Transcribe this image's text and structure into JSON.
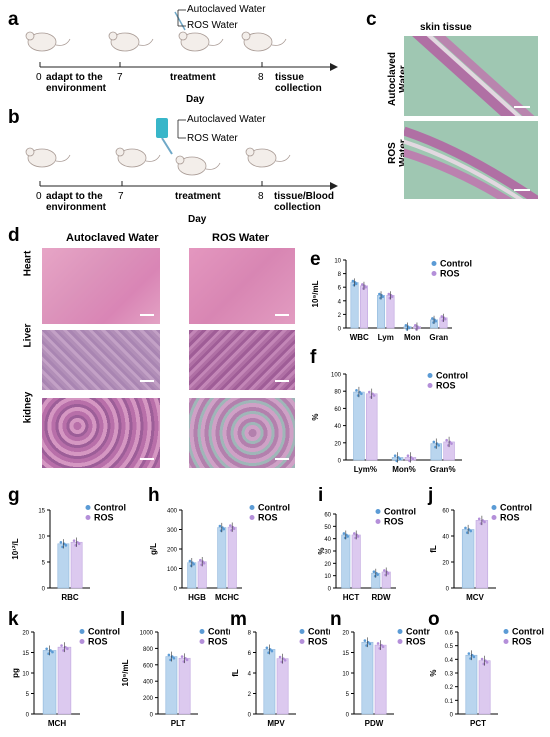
{
  "panel_letters": {
    "a": "a",
    "b": "b",
    "c": "c",
    "d": "d",
    "e": "e",
    "f": "f",
    "g": "g",
    "h": "h",
    "i": "i",
    "j": "j",
    "k": "k",
    "l": "l",
    "m": "m",
    "n": "n",
    "o": "o"
  },
  "timeline_a": {
    "tick0": "0",
    "tick0_label": "adapt to the\nenvironment",
    "tick7": "7",
    "tick_treat": "treatment",
    "tick8": "8",
    "tick8_label": "tissue\ncollection",
    "day": "Day",
    "water1": "Autoclaved Water",
    "water2": "ROS Water"
  },
  "timeline_b": {
    "tick0": "0",
    "tick0_label": "adapt to the\nenvironment",
    "tick7": "7",
    "tick_treat": "treatment",
    "tick8": "8",
    "tick8_label": "tissue/Blood\ncollection",
    "day": "Day",
    "water1": "Autoclaved Water",
    "water2": "ROS Water"
  },
  "panel_c": {
    "title": "skin tissue",
    "row1": "Autoclaved\nWater",
    "row2": "ROS\nWater"
  },
  "panel_d": {
    "col1": "Autoclaved Water",
    "col2": "ROS Water",
    "row1": "Heart",
    "row2": "Liver",
    "row3": "kidney"
  },
  "colors": {
    "control": "#5b9bd5",
    "ros": "#b48fd9",
    "control_bar": "#b9d5ee",
    "ros_bar": "#dcc9ef",
    "he_pink": "#d98fb6",
    "he_purple": "#a9579a"
  },
  "chart_data": [
    {
      "id": "e",
      "type": "bar",
      "ylabel": "10⁹/mL",
      "ylim": [
        0,
        10
      ],
      "yticks": [
        0,
        2,
        4,
        6,
        8,
        10
      ],
      "categories": [
        "WBC",
        "Lym",
        "Mon",
        "Gran"
      ],
      "series": [
        {
          "name": "Control",
          "values": [
            6.7,
            4.8,
            0.2,
            1.2
          ]
        },
        {
          "name": "ROS",
          "values": [
            6.2,
            4.8,
            0.2,
            1.5
          ]
        }
      ],
      "legend": "top-right"
    },
    {
      "id": "f",
      "type": "bar",
      "ylabel": "%",
      "ylim": [
        0,
        100
      ],
      "yticks": [
        0,
        20,
        40,
        60,
        80,
        100
      ],
      "categories": [
        "Lym%",
        "Mon%",
        "Gran%"
      ],
      "series": [
        {
          "name": "Control",
          "values": [
            79,
            3,
            19
          ]
        },
        {
          "name": "ROS",
          "values": [
            77,
            3,
            21
          ]
        }
      ],
      "legend": "top-right"
    },
    {
      "id": "g",
      "type": "bar",
      "ylabel": "10¹²/L",
      "ylim": [
        0,
        15
      ],
      "yticks": [
        0,
        5,
        10,
        15
      ],
      "categories": [
        "RBC"
      ],
      "series": [
        {
          "name": "Control",
          "values": [
            8.5
          ]
        },
        {
          "name": "ROS",
          "values": [
            8.8
          ]
        }
      ],
      "legend": "top-right"
    },
    {
      "id": "h",
      "type": "bar",
      "ylabel": "g/L",
      "ylim": [
        0,
        400
      ],
      "yticks": [
        0,
        100,
        200,
        300,
        400
      ],
      "categories": [
        "HGB",
        "MCHC"
      ],
      "series": [
        {
          "name": "Control",
          "values": [
            130,
            310
          ]
        },
        {
          "name": "ROS",
          "values": [
            135,
            312
          ]
        }
      ],
      "legend": "top-right"
    },
    {
      "id": "i",
      "type": "bar",
      "ylabel": "%",
      "ylim": [
        0,
        60
      ],
      "yticks": [
        0,
        10,
        20,
        30,
        40,
        50,
        60
      ],
      "categories": [
        "HCT",
        "RDW"
      ],
      "series": [
        {
          "name": "Control",
          "values": [
            43,
            12
          ]
        },
        {
          "name": "ROS",
          "values": [
            43,
            13
          ]
        }
      ],
      "legend": "top-right"
    },
    {
      "id": "j",
      "type": "bar",
      "ylabel": "fL",
      "ylim": [
        0,
        60
      ],
      "yticks": [
        0,
        20,
        40,
        60
      ],
      "categories": [
        "MCV"
      ],
      "series": [
        {
          "name": "Control",
          "values": [
            45
          ]
        },
        {
          "name": "ROS",
          "values": [
            52
          ]
        }
      ],
      "legend": "top-right"
    },
    {
      "id": "k",
      "type": "bar",
      "ylabel": "pg",
      "ylim": [
        0,
        20
      ],
      "yticks": [
        0,
        5,
        10,
        15,
        20
      ],
      "categories": [
        "MCH"
      ],
      "series": [
        {
          "name": "Control",
          "values": [
            15.5
          ]
        },
        {
          "name": "ROS",
          "values": [
            16.3
          ]
        }
      ],
      "legend": "top-right"
    },
    {
      "id": "l",
      "type": "bar",
      "ylabel": "10⁹/mL",
      "ylim": [
        0,
        1000
      ],
      "yticks": [
        0,
        200,
        400,
        600,
        800,
        1000
      ],
      "categories": [
        "PLT"
      ],
      "series": [
        {
          "name": "Control",
          "values": [
            700
          ]
        },
        {
          "name": "ROS",
          "values": [
            680
          ]
        }
      ],
      "legend": "top-right"
    },
    {
      "id": "m",
      "type": "bar",
      "ylabel": "fL",
      "ylim": [
        0,
        8
      ],
      "yticks": [
        0,
        2,
        4,
        6,
        8
      ],
      "categories": [
        "MPV"
      ],
      "series": [
        {
          "name": "Control",
          "values": [
            6.3
          ]
        },
        {
          "name": "ROS",
          "values": [
            5.4
          ]
        }
      ],
      "legend": "top-right"
    },
    {
      "id": "n",
      "type": "bar",
      "ylabel": "",
      "ylim": [
        0,
        20
      ],
      "yticks": [
        0,
        5,
        10,
        15,
        20
      ],
      "categories": [
        "PDW"
      ],
      "series": [
        {
          "name": "Control",
          "values": [
            17.5
          ]
        },
        {
          "name": "ROS",
          "values": [
            16.8
          ]
        }
      ],
      "legend": "top-right"
    },
    {
      "id": "o",
      "type": "bar",
      "ylabel": "%",
      "ylim": [
        0,
        0.6
      ],
      "yticks": [
        0,
        0.1,
        0.2,
        0.3,
        0.4,
        0.5,
        0.6
      ],
      "categories": [
        "PCT"
      ],
      "series": [
        {
          "name": "Control",
          "values": [
            0.43
          ]
        },
        {
          "name": "ROS",
          "values": [
            0.39
          ]
        }
      ],
      "legend": "top-right"
    }
  ]
}
